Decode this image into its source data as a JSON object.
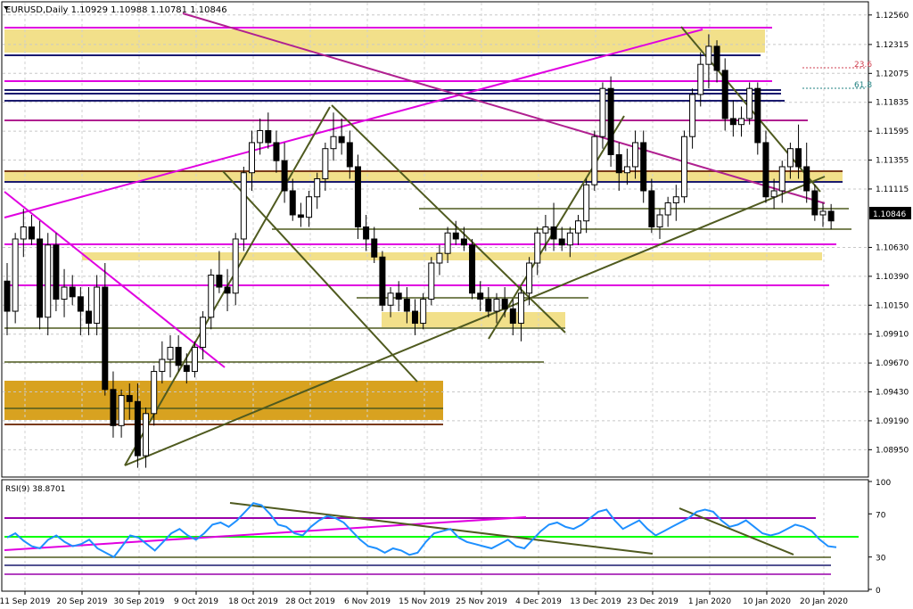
{
  "chart_data": {
    "type": "candlestick",
    "symbol": "EURUSD",
    "timeframe": "Daily",
    "header_text": "EURUSD,Daily  1.10929 1.10988 1.10781 1.10846",
    "last_price": "1.10846",
    "fib_labels": [
      "23.6",
      "61.8"
    ],
    "price_ticks": [
      "1.12560",
      "1.12315",
      "1.12075",
      "1.11835",
      "1.11595",
      "1.11355",
      "1.11115",
      "1.10630",
      "1.10390",
      "1.10150",
      "1.09910",
      "1.09670",
      "1.09430",
      "1.09190",
      "1.08950"
    ],
    "price_tick_values": [
      1.1256,
      1.12315,
      1.12075,
      1.11835,
      1.11595,
      1.11355,
      1.11115,
      1.1063,
      1.1039,
      1.1015,
      1.0991,
      1.0967,
      1.0943,
      1.0919,
      1.0895
    ],
    "date_labels": [
      "11 Sep 2019",
      "20 Sep 2019",
      "30 Sep 2019",
      "9 Oct 2019",
      "18 Oct 2019",
      "28 Oct 2019",
      "6 Nov 2019",
      "15 Nov 2019",
      "25 Nov 2019",
      "4 Dec 2019",
      "13 Dec 2019",
      "23 Dec 2019",
      "1 Jan 2020",
      "10 Jan 2020",
      "20 Jan 2020"
    ],
    "price_range": [
      1.0876,
      1.1264
    ],
    "candles": [
      [
        1.1035,
        1.105,
        1.099,
        1.101
      ],
      [
        1.101,
        1.1075,
        1.1,
        1.107
      ],
      [
        1.107,
        1.1095,
        1.1055,
        1.108
      ],
      [
        1.108,
        1.109,
        1.1065,
        1.107
      ],
      [
        1.107,
        1.1085,
        1.0995,
        1.1005
      ],
      [
        1.1005,
        1.1075,
        1.099,
        1.1065
      ],
      [
        1.1065,
        1.1075,
        1.101,
        1.102
      ],
      [
        1.102,
        1.1045,
        1.1005,
        1.103
      ],
      [
        1.103,
        1.104,
        1.1015,
        1.1022
      ],
      [
        1.1022,
        1.103,
        1.099,
        1.101
      ],
      [
        1.101,
        1.103,
        1.099,
        1.1
      ],
      [
        1.1,
        1.104,
        1.099,
        1.103
      ],
      [
        1.103,
        1.105,
        1.094,
        1.0945
      ],
      [
        1.0945,
        1.096,
        1.0905,
        1.0915
      ],
      [
        1.0915,
        1.0945,
        1.0905,
        1.094
      ],
      [
        1.094,
        1.095,
        1.092,
        1.0935
      ],
      [
        1.0935,
        1.095,
        1.088,
        1.089
      ],
      [
        1.089,
        1.093,
        1.088,
        1.0925
      ],
      [
        1.0925,
        1.0965,
        1.0915,
        1.096
      ],
      [
        1.096,
        1.0985,
        1.095,
        1.097
      ],
      [
        1.097,
        1.099,
        1.0955,
        1.098
      ],
      [
        1.098,
        1.099,
        1.096,
        1.0965
      ],
      [
        1.0965,
        1.0975,
        1.095,
        1.096
      ],
      [
        1.096,
        1.0985,
        1.0955,
        1.098
      ],
      [
        1.098,
        1.101,
        1.097,
        1.1005
      ],
      [
        1.1005,
        1.1045,
        1.0995,
        1.104
      ],
      [
        1.104,
        1.106,
        1.1025,
        1.103
      ],
      [
        1.103,
        1.1045,
        1.101,
        1.1025
      ],
      [
        1.1025,
        1.1075,
        1.1015,
        1.107
      ],
      [
        1.107,
        1.113,
        1.106,
        1.1125
      ],
      [
        1.1125,
        1.116,
        1.111,
        1.115
      ],
      [
        1.115,
        1.117,
        1.114,
        1.116
      ],
      [
        1.116,
        1.1175,
        1.1145,
        1.115
      ],
      [
        1.115,
        1.116,
        1.1125,
        1.1135
      ],
      [
        1.1135,
        1.115,
        1.11,
        1.111
      ],
      [
        1.111,
        1.112,
        1.1085,
        1.109
      ],
      [
        1.109,
        1.11,
        1.108,
        1.1088
      ],
      [
        1.1088,
        1.111,
        1.108,
        1.1105
      ],
      [
        1.1105,
        1.1125,
        1.1095,
        1.112
      ],
      [
        1.112,
        1.115,
        1.111,
        1.1145
      ],
      [
        1.1145,
        1.1175,
        1.1135,
        1.1155
      ],
      [
        1.1155,
        1.117,
        1.114,
        1.115
      ],
      [
        1.115,
        1.116,
        1.112,
        1.113
      ],
      [
        1.113,
        1.114,
        1.107,
        1.108
      ],
      [
        1.108,
        1.109,
        1.106,
        1.107
      ],
      [
        1.107,
        1.108,
        1.105,
        1.1055
      ],
      [
        1.1055,
        1.106,
        1.101,
        1.1015
      ],
      [
        1.1015,
        1.103,
        1.1005,
        1.1025
      ],
      [
        1.1025,
        1.1035,
        1.101,
        1.102
      ],
      [
        1.102,
        1.103,
        1.1,
        1.101
      ],
      [
        1.101,
        1.102,
        1.099,
        1.1
      ],
      [
        1.1,
        1.1025,
        1.0995,
        1.102
      ],
      [
        1.102,
        1.1055,
        1.1015,
        1.105
      ],
      [
        1.105,
        1.1065,
        1.104,
        1.1058
      ],
      [
        1.1058,
        1.108,
        1.105,
        1.1075
      ],
      [
        1.1075,
        1.1085,
        1.1065,
        1.107
      ],
      [
        1.107,
        1.108,
        1.106,
        1.1065
      ],
      [
        1.1065,
        1.107,
        1.102,
        1.1025
      ],
      [
        1.1025,
        1.1035,
        1.101,
        1.102
      ],
      [
        1.102,
        1.103,
        1.1005,
        1.101
      ],
      [
        1.101,
        1.1025,
        1.1,
        1.102
      ],
      [
        1.102,
        1.103,
        1.1005,
        1.1012
      ],
      [
        1.1012,
        1.102,
        1.099,
        1.1
      ],
      [
        1.1,
        1.103,
        1.0985,
        1.1025
      ],
      [
        1.1025,
        1.1055,
        1.1015,
        1.105
      ],
      [
        1.105,
        1.108,
        1.104,
        1.1075
      ],
      [
        1.1075,
        1.109,
        1.106,
        1.108
      ],
      [
        1.108,
        1.11,
        1.106,
        1.107
      ],
      [
        1.107,
        1.108,
        1.106,
        1.1065
      ],
      [
        1.1065,
        1.108,
        1.1055,
        1.1075
      ],
      [
        1.1075,
        1.109,
        1.1065,
        1.1085
      ],
      [
        1.1085,
        1.112,
        1.1075,
        1.1115
      ],
      [
        1.1115,
        1.116,
        1.111,
        1.1155
      ],
      [
        1.1155,
        1.12,
        1.1145,
        1.1195
      ],
      [
        1.1195,
        1.1205,
        1.113,
        1.114
      ],
      [
        1.114,
        1.115,
        1.111,
        1.1125
      ],
      [
        1.1125,
        1.1145,
        1.1115,
        1.113
      ],
      [
        1.113,
        1.116,
        1.112,
        1.115
      ],
      [
        1.115,
        1.116,
        1.11,
        1.111
      ],
      [
        1.111,
        1.112,
        1.1075,
        1.108
      ],
      [
        1.108,
        1.1095,
        1.107,
        1.109
      ],
      [
        1.109,
        1.1105,
        1.108,
        1.11
      ],
      [
        1.11,
        1.1115,
        1.1085,
        1.1105
      ],
      [
        1.1105,
        1.116,
        1.11,
        1.1155
      ],
      [
        1.1155,
        1.1195,
        1.1145,
        1.119
      ],
      [
        1.119,
        1.1225,
        1.118,
        1.1215
      ],
      [
        1.1215,
        1.124,
        1.1195,
        1.123
      ],
      [
        1.123,
        1.1235,
        1.12,
        1.121
      ],
      [
        1.121,
        1.122,
        1.116,
        1.117
      ],
      [
        1.117,
        1.1185,
        1.1155,
        1.1165
      ],
      [
        1.1165,
        1.118,
        1.1155,
        1.117
      ],
      [
        1.117,
        1.12,
        1.1165,
        1.1195
      ],
      [
        1.1195,
        1.12,
        1.114,
        1.115
      ],
      [
        1.115,
        1.116,
        1.11,
        1.1105
      ],
      [
        1.1105,
        1.112,
        1.1095,
        1.111
      ],
      [
        1.111,
        1.1135,
        1.11,
        1.113
      ],
      [
        1.113,
        1.115,
        1.112,
        1.1145
      ],
      [
        1.1145,
        1.1165,
        1.112,
        1.113
      ],
      [
        1.113,
        1.115,
        1.11,
        1.111
      ],
      [
        1.111,
        1.1115,
        1.1085,
        1.109
      ],
      [
        1.109,
        1.11,
        1.108,
        1.1093
      ],
      [
        1.1093,
        1.1099,
        1.1078,
        1.1085
      ]
    ],
    "rsi": {
      "label": "RSI(9) 38.8701",
      "ticks": [
        "100",
        "70",
        "30",
        "0"
      ],
      "tick_values": [
        100,
        70,
        30,
        0
      ],
      "values": [
        48,
        52,
        45,
        40,
        38,
        46,
        50,
        44,
        40,
        42,
        46,
        38,
        34,
        30,
        40,
        50,
        48,
        42,
        36,
        44,
        52,
        56,
        50,
        46,
        52,
        60,
        62,
        58,
        64,
        72,
        80,
        78,
        70,
        60,
        58,
        52,
        50,
        58,
        64,
        68,
        66,
        62,
        54,
        46,
        40,
        38,
        34,
        38,
        36,
        32,
        34,
        44,
        52,
        54,
        56,
        48,
        44,
        42,
        40,
        38,
        42,
        46,
        40,
        38,
        46,
        54,
        60,
        62,
        58,
        56,
        60,
        66,
        72,
        74,
        64,
        56,
        60,
        64,
        56,
        50,
        54,
        58,
        62,
        66,
        72,
        74,
        72,
        64,
        58,
        60,
        64,
        58,
        52,
        50,
        52,
        56,
        60,
        58,
        54,
        46,
        40,
        39
      ],
      "level_lines": [
        66,
        50,
        30,
        20,
        10
      ]
    },
    "colors": {
      "bull_fill": "#ffffff",
      "bear_fill": "#000000",
      "magenta": "#e000e0",
      "olive": "#4f5a1f",
      "zone_yellow": "#f2e08a",
      "zone_gold": "#d8a220",
      "navy": "#1a1a6e",
      "brown": "#7a3a1a",
      "rsi_line": "#1e90ff",
      "rsi_green": "#00ff00"
    }
  }
}
